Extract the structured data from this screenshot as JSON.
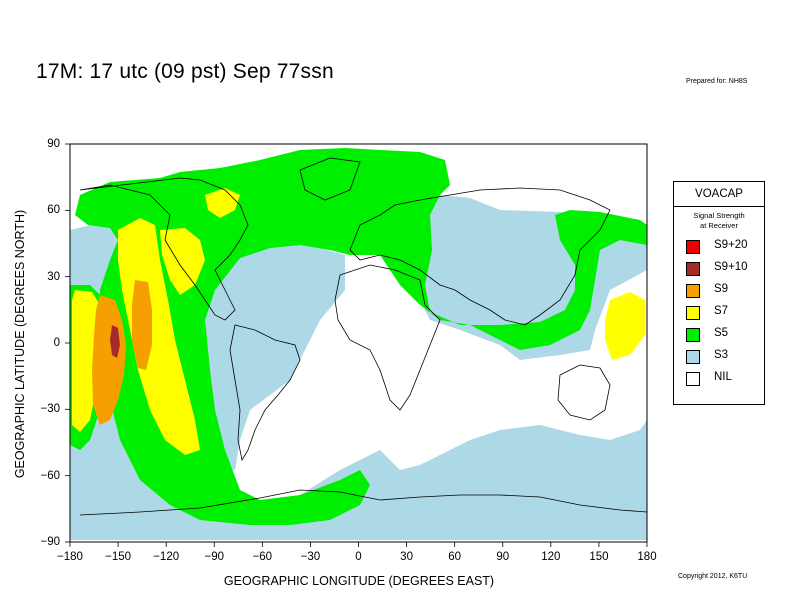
{
  "title": "17M:  17 utc (09 pst) Sep 77ssn",
  "prepared_for": "Prepared for: NH8S",
  "copyright": "Copyright 2012, K6TU",
  "chart_data": {
    "type": "heatmap",
    "xlabel": "GEOGRAPHIC LONGITUDE (DEGREES EAST)",
    "ylabel": "GEOGRAPHIC LATITUDE (DEGREES NORTH)",
    "xlim": [
      -180,
      180
    ],
    "ylim": [
      -90,
      90
    ],
    "x_ticks": [
      "−180",
      "−150",
      "−120",
      "−90",
      "−60",
      "−30",
      "0",
      "30",
      "60",
      "90",
      "120",
      "150",
      "180"
    ],
    "y_ticks": [
      "90",
      "60",
      "30",
      "0",
      "−30",
      "−60",
      "−90"
    ],
    "legend": {
      "title": "VOACAP",
      "subtitle_line1": "Signal Strength",
      "subtitle_line2": "at Receiver",
      "entries": [
        {
          "label": "S9+20",
          "color": "#ee0000"
        },
        {
          "label": "S9+10",
          "color": "#a52a2a"
        },
        {
          "label": "S9",
          "color": "#f5a000"
        },
        {
          "label": "S7",
          "color": "#ffff00"
        },
        {
          "label": "S5",
          "color": "#00ee00"
        },
        {
          "label": "S3",
          "color": "#add8e6"
        },
        {
          "label": "NIL",
          "color": "#ffffff"
        }
      ]
    }
  }
}
